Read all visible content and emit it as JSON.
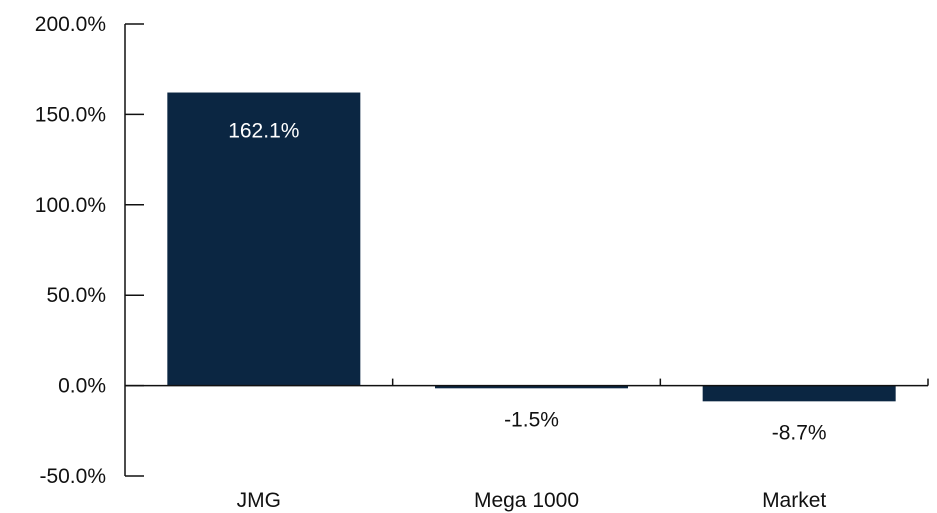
{
  "chart_data": {
    "type": "bar",
    "categories": [
      "JMG",
      "Mega 1000",
      "Market"
    ],
    "values": [
      162.1,
      -1.5,
      -8.7
    ],
    "data_labels": [
      "162.1%",
      "-1.5%",
      "-8.7%"
    ],
    "title": "",
    "xlabel": "",
    "ylabel": "",
    "ylim": [
      -50,
      200
    ],
    "yticks": [
      200,
      150,
      100,
      50,
      0,
      -50
    ],
    "ytick_labels": [
      "200.0%",
      "150.0%",
      "100.0%",
      "50.0%",
      "0.0%",
      "-50.0%"
    ],
    "grid": false,
    "legend": "none",
    "bar_color": "#0b2642",
    "label_inside_color": "#ffffff",
    "label_outside_color": "#111111"
  }
}
